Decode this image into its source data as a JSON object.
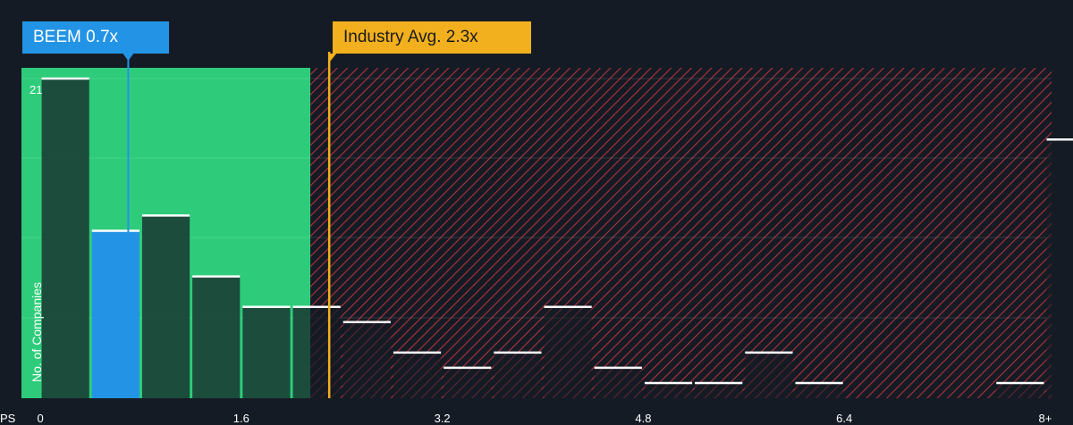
{
  "subject": {
    "ticker": "BEEM",
    "value_label": "BEEM 0.7x",
    "ps": 0.7
  },
  "industry": {
    "label": "Industry Avg. 2.3x",
    "ps": 2.3
  },
  "axis": {
    "x_prefix": "PS",
    "y_label": "No. of Companies",
    "y_max_label": "21"
  },
  "colors": {
    "background": "#151b24",
    "fair_zone": "#2ecc7a",
    "subject": "#2394e5",
    "average": "#f2b01e",
    "hatch": "#b0323c"
  },
  "chart_data": {
    "type": "bar",
    "title": "",
    "xlabel": "PS",
    "ylabel": "No. of Companies",
    "x_ticks": [
      "0",
      "1.6",
      "3.2",
      "4.8",
      "6.4",
      "8+"
    ],
    "xlim": [
      -0.15,
      8.05
    ],
    "ylim": [
      0,
      21
    ],
    "bin_width": 0.4,
    "bin_starts": [
      0,
      0.4,
      0.8,
      1.2,
      1.6,
      2.0,
      2.4,
      2.8,
      3.2,
      3.6,
      4.0,
      4.4,
      4.8,
      5.2,
      5.6,
      6.0,
      6.4,
      6.8,
      7.2,
      7.6,
      8.0
    ],
    "values": [
      21,
      11,
      12,
      8,
      6,
      6,
      5,
      3,
      2,
      3,
      6,
      2,
      1,
      1,
      3,
      1,
      0,
      0,
      0,
      1,
      17
    ],
    "highlight_index": 1,
    "subject_value": 0.7,
    "industry_average": 2.3,
    "fair_zone_max": 2.15
  }
}
